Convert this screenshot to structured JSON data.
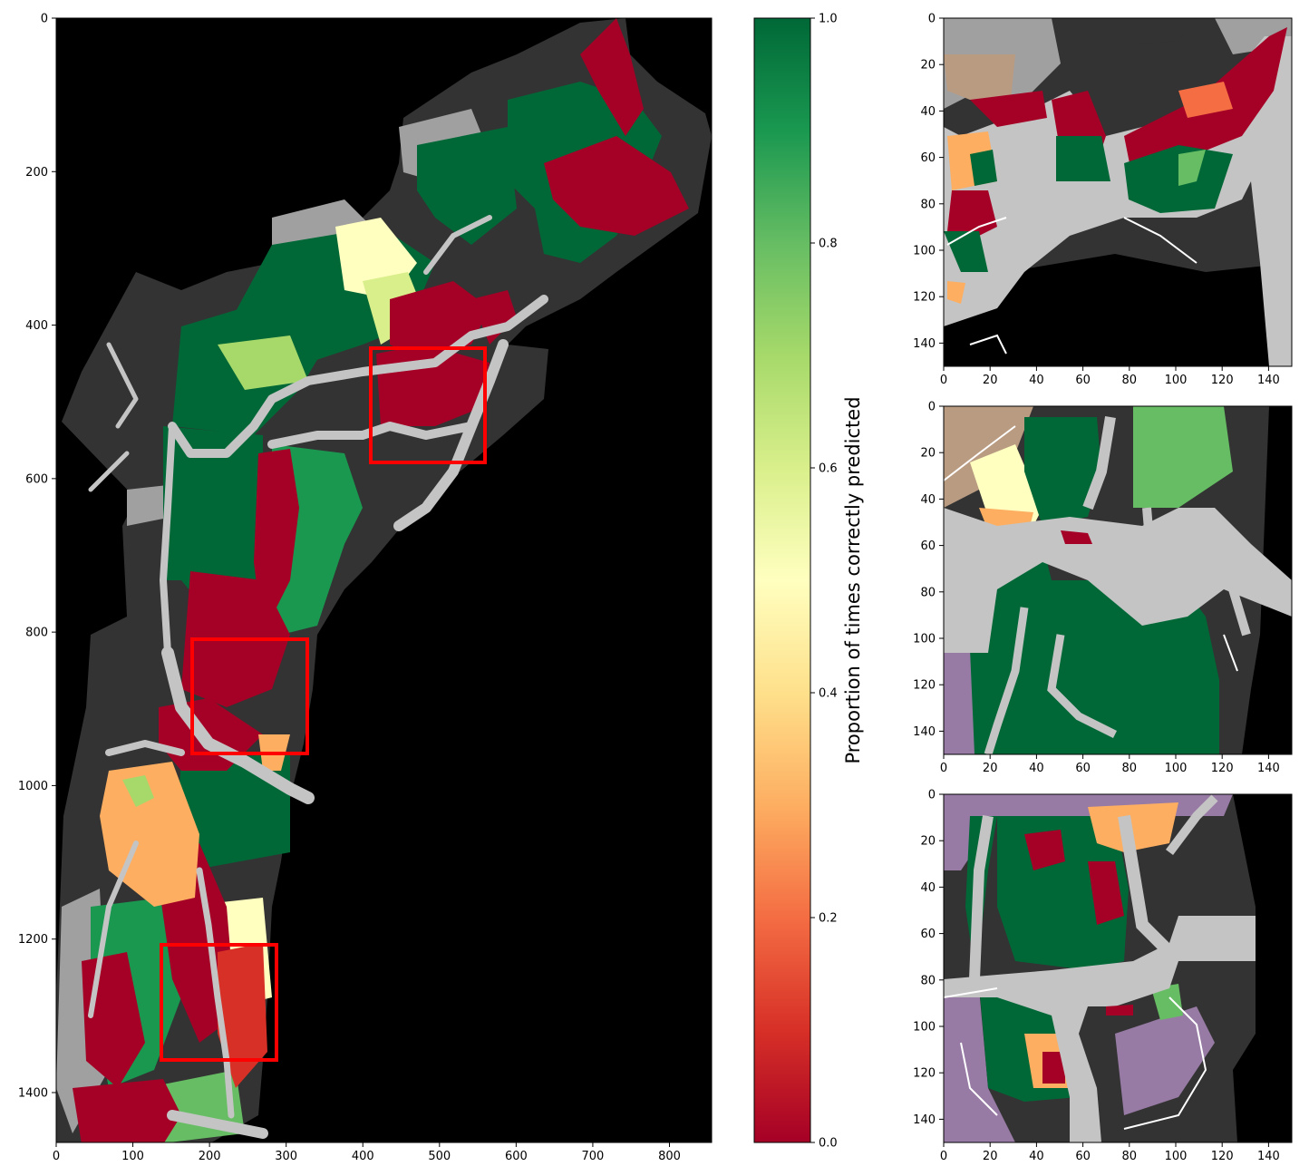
{
  "figure": {
    "colorbar_label": "Proportion of times correctly predicted",
    "colormap": [
      "#a50026",
      "#d73027",
      "#f46d43",
      "#fdae61",
      "#fee08b",
      "#ffffbf",
      "#d9ef8b",
      "#a6d96a",
      "#66bd63",
      "#1a9850",
      "#006837"
    ],
    "class_colors": {
      "no_data": "#000000",
      "background": "#333333",
      "water": "#c4c4c4",
      "wetland": "#a0a0a0",
      "upland_tan": "#b99b82",
      "upland_purple": "#977ba4",
      "boundary": "#ffffff",
      "zoom_box": "#ff0000"
    }
  },
  "chart_data": [
    {
      "type": "heatmap",
      "name": "full_map",
      "xlim": [
        0,
        855
      ],
      "ylim": [
        1465,
        0
      ],
      "xticks": [
        "0",
        "100",
        "200",
        "300",
        "400",
        "500",
        "600",
        "700",
        "800"
      ],
      "yticks": [
        "0",
        "200",
        "400",
        "600",
        "800",
        "1000",
        "1200",
        "1400"
      ],
      "zoom_boxes": [
        {
          "x0": 410,
          "x1": 560,
          "y0": 430,
          "y1": 580
        },
        {
          "x0": 178,
          "x1": 328,
          "y0": 810,
          "y1": 960
        },
        {
          "x0": 138,
          "x1": 288,
          "y0": 1210,
          "y1": 1360
        }
      ]
    },
    {
      "type": "heatmap",
      "name": "zoom_1",
      "xlim": [
        0,
        150
      ],
      "ylim": [
        150,
        0
      ],
      "xticks": [
        "0",
        "20",
        "40",
        "60",
        "80",
        "100",
        "120",
        "140"
      ],
      "yticks": [
        "0",
        "20",
        "40",
        "60",
        "80",
        "100",
        "120",
        "140"
      ]
    },
    {
      "type": "heatmap",
      "name": "zoom_2",
      "xlim": [
        0,
        150
      ],
      "ylim": [
        150,
        0
      ],
      "xticks": [
        "0",
        "20",
        "40",
        "60",
        "80",
        "100",
        "120",
        "140"
      ],
      "yticks": [
        "0",
        "20",
        "40",
        "60",
        "80",
        "100",
        "120",
        "140"
      ]
    },
    {
      "type": "heatmap",
      "name": "zoom_3",
      "xlim": [
        0,
        150
      ],
      "ylim": [
        150,
        0
      ],
      "xticks": [
        "0",
        "20",
        "40",
        "60",
        "80",
        "100",
        "120",
        "140"
      ],
      "yticks": [
        "0",
        "20",
        "40",
        "60",
        "80",
        "100",
        "120",
        "140"
      ]
    },
    {
      "type": "colorbar",
      "name": "colorbar",
      "range": [
        0,
        1.0
      ],
      "ticks": [
        "0.0",
        "0.2",
        "0.4",
        "0.6",
        "0.8",
        "1.0"
      ]
    }
  ]
}
